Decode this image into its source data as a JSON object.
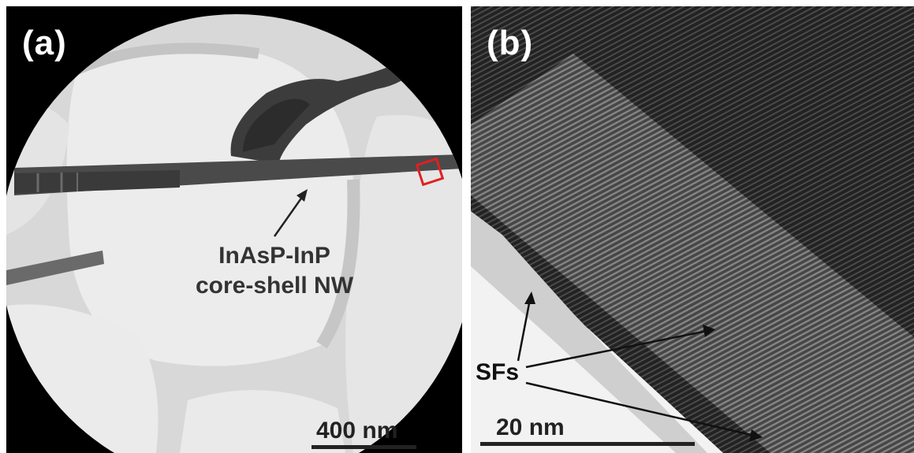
{
  "panel_a": {
    "label": "(a)",
    "annotation_line1": "InAsP-InP",
    "annotation_line2": "core-shell NW",
    "scale_label": "400 nm",
    "highlight_color": "#e02020"
  },
  "panel_b": {
    "label": "(b)",
    "annotation": "SFs",
    "scale_label": "20 nm"
  }
}
